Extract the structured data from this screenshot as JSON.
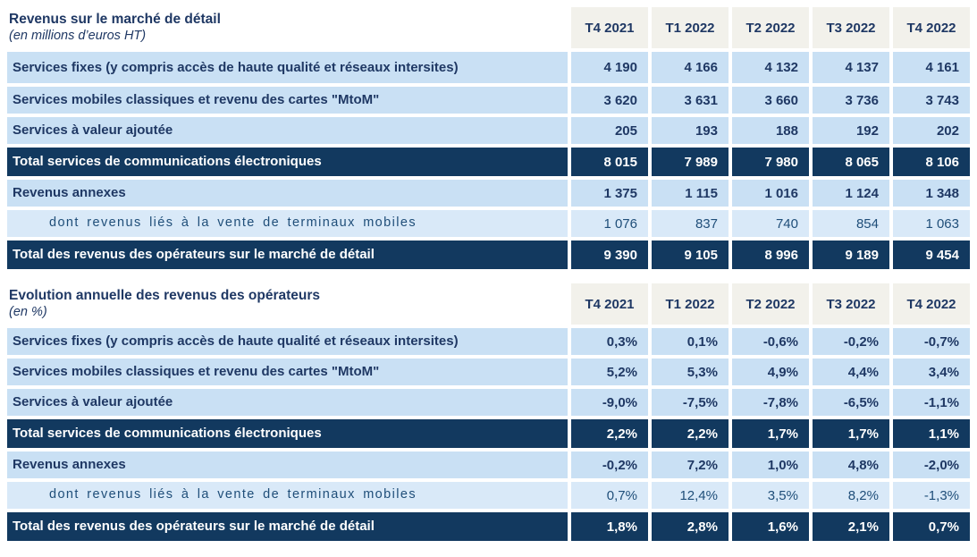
{
  "colors": {
    "header_bg": "#F2F1EB",
    "row_bg": "#C9E0F4",
    "sub_row_bg": "#D9E9F8",
    "total_row_bg": "#12395F",
    "text_navy": "#1F3864",
    "total_text": "#FFFFFF"
  },
  "chart_data": [
    {
      "type": "table",
      "title": "Revenus sur le marché de détail",
      "subtitle": "(en millions d’euros HT)",
      "columns": [
        "T4 2021",
        "T1 2022",
        "T2 2022",
        "T3 2022",
        "T4 2022"
      ],
      "rows": [
        {
          "label": "Services fixes (y compris accès de haute qualité et réseaux intersites)",
          "style": "normal",
          "values": [
            "4 190",
            "4 166",
            "4 132",
            "4 137",
            "4 161"
          ]
        },
        {
          "label": "Services mobiles classiques et revenu des cartes \"MtoM\"",
          "style": "normal",
          "values": [
            "3 620",
            "3 631",
            "3 660",
            "3 736",
            "3 743"
          ]
        },
        {
          "label": "Services à valeur ajoutée",
          "style": "normal",
          "values": [
            "205",
            "193",
            "188",
            "192",
            "202"
          ]
        },
        {
          "label": "Total services de communications électroniques",
          "style": "total",
          "values": [
            "8 015",
            "7 989",
            "7 980",
            "8 065",
            "8 106"
          ]
        },
        {
          "label": "Revenus annexes",
          "style": "normal",
          "values": [
            "1 375",
            "1 115",
            "1 016",
            "1 124",
            "1 348"
          ]
        },
        {
          "label": "dont revenus liés à la vente de terminaux mobiles",
          "style": "sub",
          "values": [
            "1 076",
            "837",
            "740",
            "854",
            "1 063"
          ]
        },
        {
          "label": "Total des revenus des opérateurs sur le marché de détail",
          "style": "total",
          "values": [
            "9 390",
            "9 105",
            "8 996",
            "9 189",
            "9 454"
          ]
        }
      ]
    },
    {
      "type": "table",
      "title": "Evolution annuelle des revenus des opérateurs",
      "subtitle": "(en %)",
      "columns": [
        "T4 2021",
        "T1 2022",
        "T2 2022",
        "T3 2022",
        "T4 2022"
      ],
      "rows": [
        {
          "label": "Services fixes (y compris accès de haute qualité et réseaux intersites)",
          "style": "normal",
          "values": [
            "0,3%",
            "0,1%",
            "-0,6%",
            "-0,2%",
            "-0,7%"
          ]
        },
        {
          "label": "Services mobiles classiques et revenu des cartes \"MtoM\"",
          "style": "normal",
          "values": [
            "5,2%",
            "5,3%",
            "4,9%",
            "4,4%",
            "3,4%"
          ]
        },
        {
          "label": "Services à valeur ajoutée",
          "style": "normal",
          "values": [
            "-9,0%",
            "-7,5%",
            "-7,8%",
            "-6,5%",
            "-1,1%"
          ]
        },
        {
          "label": "Total services de communications électroniques",
          "style": "total",
          "values": [
            "2,2%",
            "2,2%",
            "1,7%",
            "1,7%",
            "1,1%"
          ]
        },
        {
          "label": "Revenus annexes",
          "style": "normal",
          "values": [
            "-0,2%",
            "7,2%",
            "1,0%",
            "4,8%",
            "-2,0%"
          ]
        },
        {
          "label": "dont revenus liés à la vente de terminaux mobiles",
          "style": "sub",
          "values": [
            "0,7%",
            "12,4%",
            "3,5%",
            "8,2%",
            "-1,3%"
          ]
        },
        {
          "label": "Total des revenus des opérateurs sur le marché de détail",
          "style": "total",
          "values": [
            "1,8%",
            "2,8%",
            "1,6%",
            "2,1%",
            "0,7%"
          ]
        }
      ]
    }
  ]
}
